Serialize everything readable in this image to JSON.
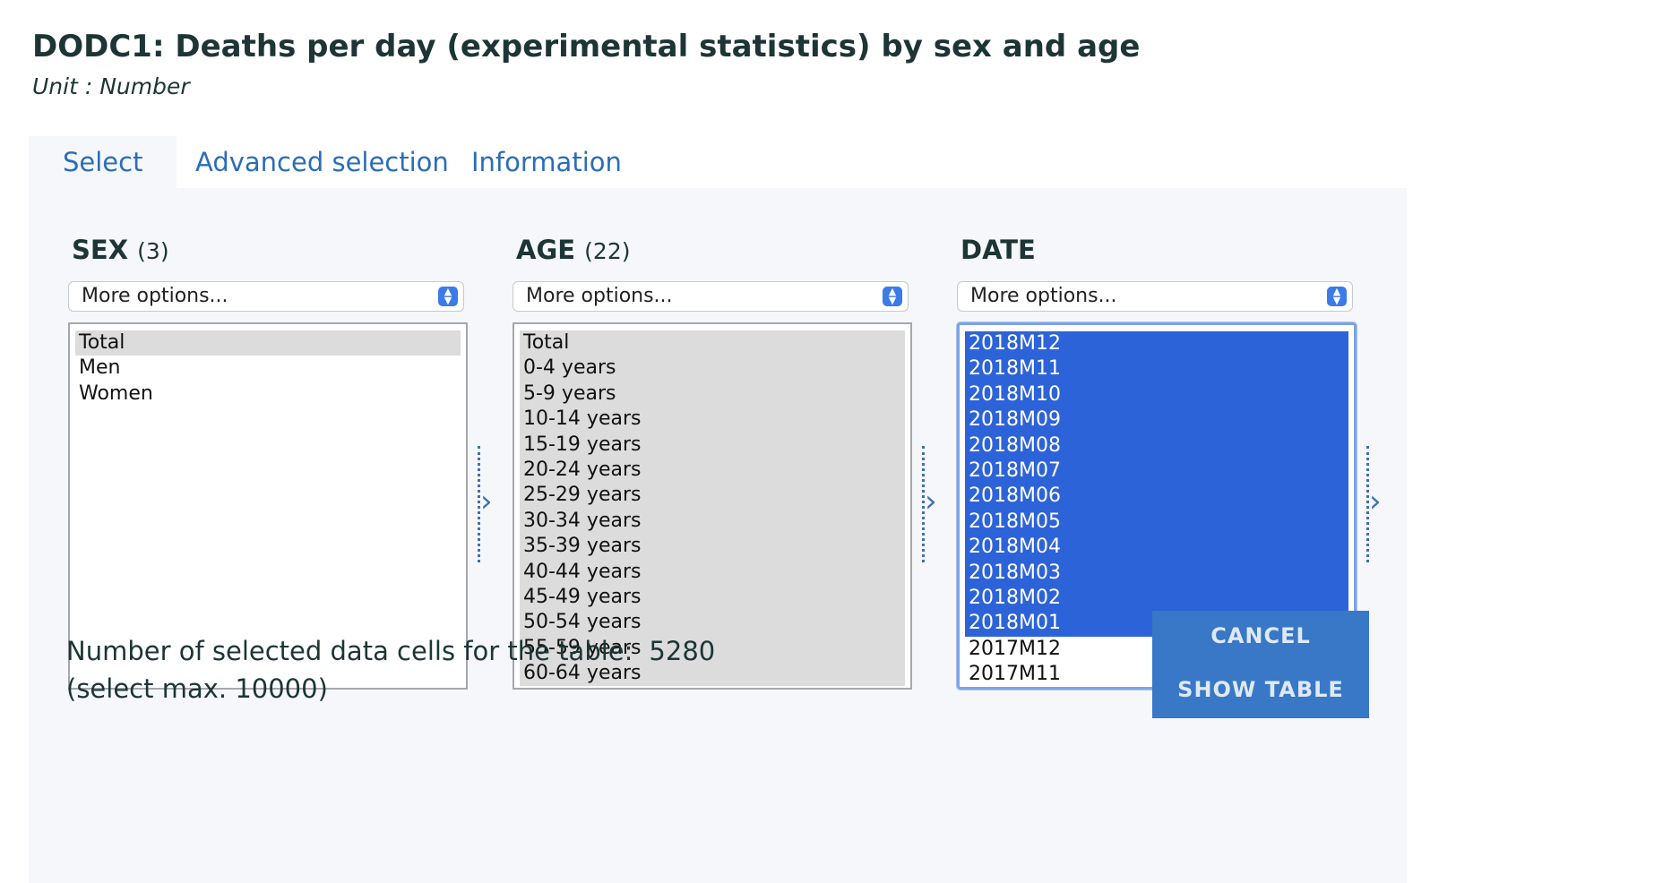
{
  "header": {
    "title": "DODC1: Deaths per day (experimental statistics) by sex and age",
    "unit": "Unit : Number"
  },
  "tabs": [
    {
      "label": "Select",
      "active": true
    },
    {
      "label": "Advanced selection",
      "active": false
    },
    {
      "label": "Information",
      "active": false
    }
  ],
  "variables": {
    "sex": {
      "name": "SEX",
      "count": "(3)",
      "more_options": "More options...",
      "options": [
        "Total",
        "Men",
        "Women"
      ],
      "selected": [
        "Total"
      ]
    },
    "age": {
      "name": "AGE",
      "count": "(22)",
      "more_options": "More options...",
      "options": [
        "Total",
        "0-4 years",
        "5-9 years",
        "10-14 years",
        "15-19 years",
        "20-24 years",
        "25-29 years",
        "30-34 years",
        "35-39 years",
        "40-44 years",
        "45-49 years",
        "50-54 years",
        "55-59 years",
        "60-64 years"
      ]
    },
    "date": {
      "name": "DATE",
      "more_options": "More options...",
      "options": [
        "2018M12",
        "2018M11",
        "2018M10",
        "2018M09",
        "2018M08",
        "2018M07",
        "2018M06",
        "2018M05",
        "2018M04",
        "2018M03",
        "2018M02",
        "2018M01",
        "2017M12",
        "2017M11"
      ],
      "selected": [
        "2018M12",
        "2018M11",
        "2018M10",
        "2018M09",
        "2018M08",
        "2018M07",
        "2018M06",
        "2018M05",
        "2018M04",
        "2018M03",
        "2018M02",
        "2018M01"
      ]
    }
  },
  "summary": {
    "label": "Number of selected data cells for the table:",
    "count": "5280",
    "max_note": "(select max. 10000)"
  },
  "actions": {
    "cancel": "CANCEL",
    "show_table": "SHOW TABLE"
  },
  "colors": {
    "accent": "#2a6db8",
    "selection": "#2d63d8",
    "button_bg": "#3878c6",
    "panel_bg": "#f5f7fa"
  }
}
